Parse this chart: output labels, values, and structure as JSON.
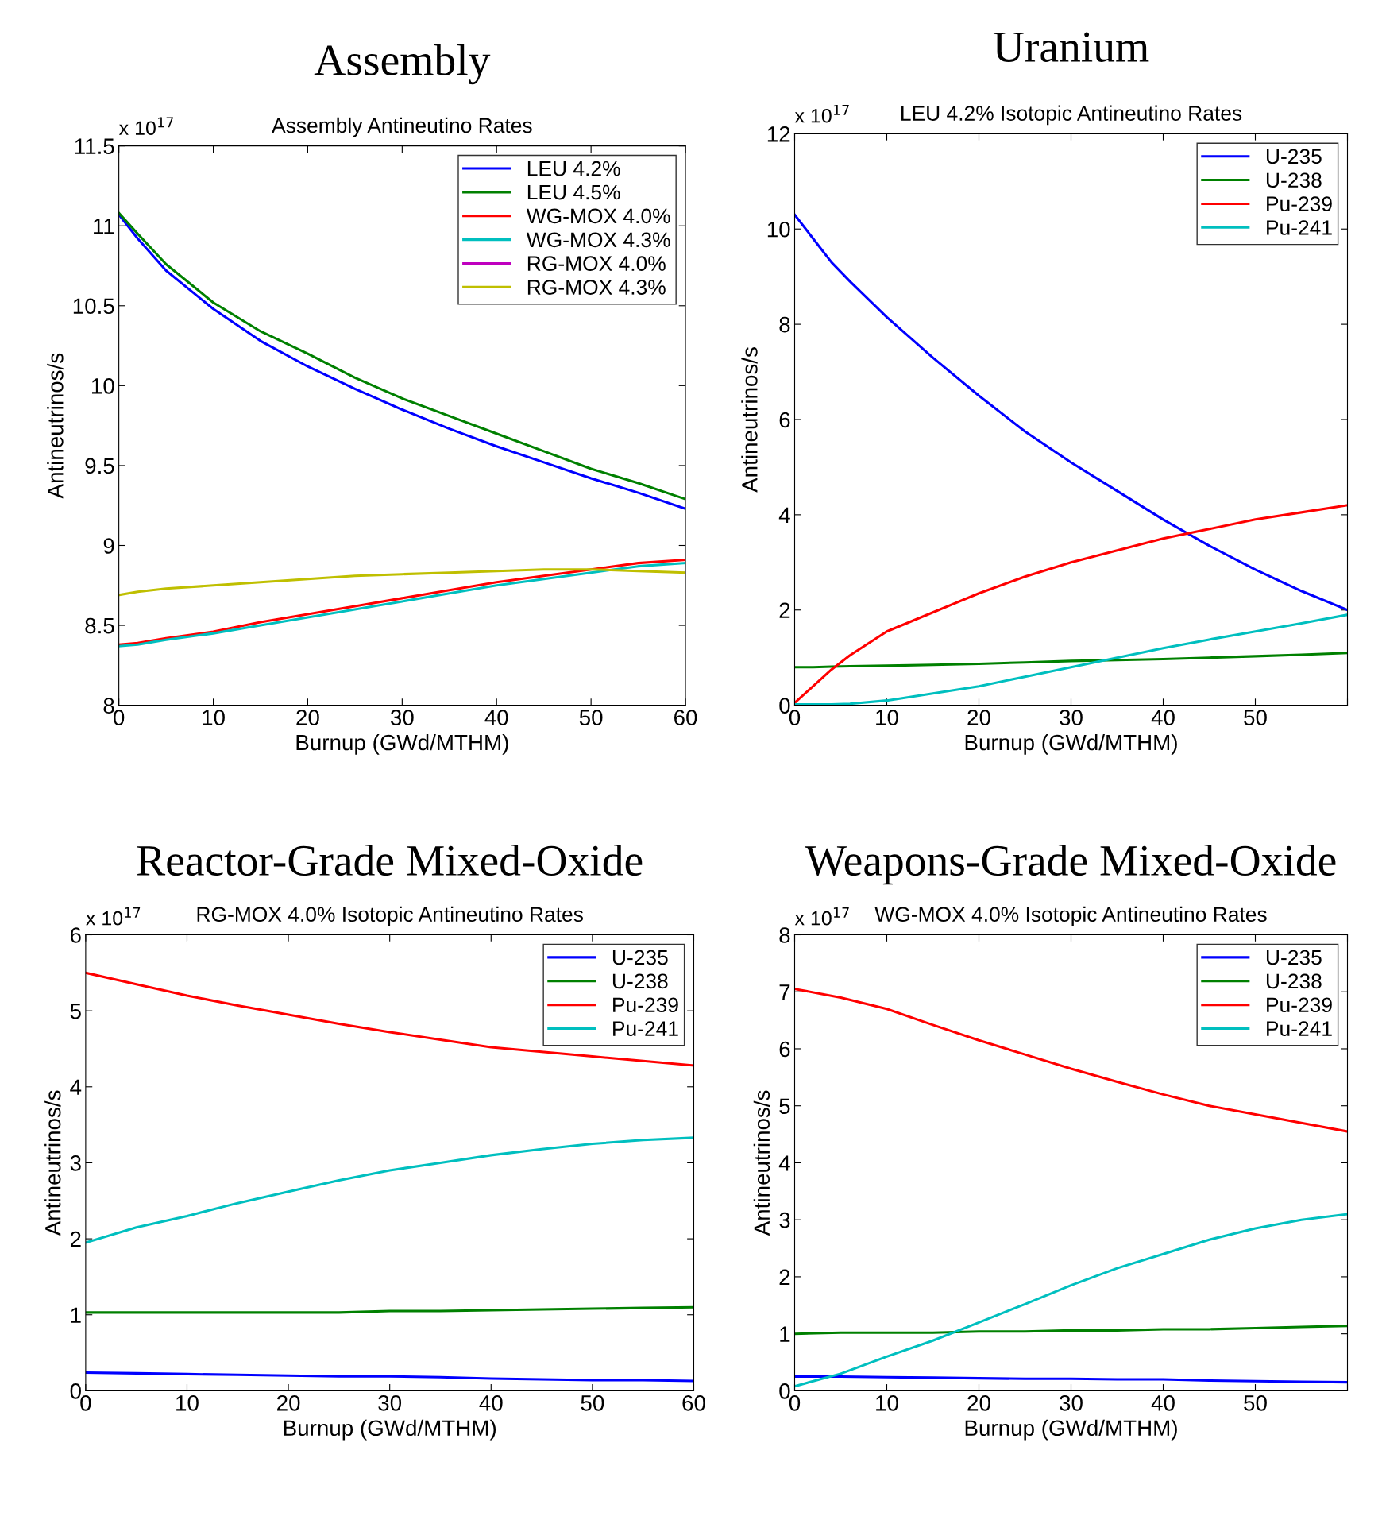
{
  "chart_data": [
    {
      "type": "line",
      "title": "Assembly",
      "subtitle": "Assembly Antineutino Rates",
      "xlabel": "Burnup (GWd/MTHM)",
      "ylabel": "Antineutrinos/s",
      "annotations": [
        "x 10$^{17}$"
      ],
      "x": [
        0,
        2,
        5,
        10,
        15,
        20,
        25,
        30,
        35,
        40,
        45,
        50,
        55,
        60
      ],
      "xlim": [
        0,
        60
      ],
      "xticks": [
        0,
        10,
        20,
        30,
        40,
        50,
        60
      ],
      "ylim": [
        8,
        11.5
      ],
      "yticks": [
        8,
        8.5,
        9,
        9.5,
        10,
        10.5,
        11,
        11.5
      ],
      "legend": "top right",
      "series": [
        {
          "name": "LEU 4.2%",
          "color": "#0000ff",
          "values": [
            11.07,
            10.92,
            10.72,
            10.48,
            10.28,
            10.12,
            9.98,
            9.85,
            9.73,
            9.62,
            9.52,
            9.42,
            9.33,
            9.23
          ]
        },
        {
          "name": "LEU 4.5%",
          "color": "#008000",
          "values": [
            11.08,
            10.95,
            10.76,
            10.52,
            10.34,
            10.2,
            10.05,
            9.92,
            9.81,
            9.7,
            9.59,
            9.48,
            9.39,
            9.29
          ]
        },
        {
          "name": "WG-MOX 4.0%",
          "color": "#ff0000",
          "values": [
            8.38,
            8.39,
            8.42,
            8.46,
            8.52,
            8.57,
            8.62,
            8.67,
            8.72,
            8.77,
            8.81,
            8.85,
            8.89,
            8.91
          ]
        },
        {
          "name": "WG-MOX 4.3%",
          "color": "#00bfbf",
          "values": [
            8.37,
            8.38,
            8.41,
            8.45,
            8.5,
            8.55,
            8.6,
            8.65,
            8.7,
            8.75,
            8.79,
            8.83,
            8.87,
            8.89
          ]
        },
        {
          "name": "RG-MOX 4.0%",
          "color": "#bf00bf",
          "values": [
            null,
            null,
            null,
            null,
            null,
            null,
            null,
            null,
            null,
            null,
            null,
            null,
            null,
            null
          ]
        },
        {
          "name": "RG-MOX 4.3%",
          "color": "#bfbf00",
          "values": [
            8.69,
            8.71,
            8.73,
            8.75,
            8.77,
            8.79,
            8.81,
            8.82,
            8.83,
            8.84,
            8.85,
            8.85,
            8.84,
            8.83
          ]
        }
      ]
    },
    {
      "type": "line",
      "title": "Uranium",
      "subtitle": "LEU 4.2% Isotopic Antineutino Rates",
      "xlabel": "Burnup (GWd/MTHM)",
      "ylabel": "Antineutrinos/s",
      "annotations": [
        "x 10$^{17}$"
      ],
      "x": [
        0,
        2,
        4,
        6,
        10,
        15,
        20,
        25,
        30,
        35,
        40,
        45,
        50,
        55,
        60
      ],
      "xlim": [
        0,
        60
      ],
      "xticks": [
        0,
        10,
        20,
        30,
        40,
        50,
        {
          "value": 60,
          "label": null
        }
      ],
      "ylim": [
        0,
        12
      ],
      "yticks": [
        0,
        2,
        4,
        6,
        8,
        10,
        12
      ],
      "legend": "top right",
      "series": [
        {
          "name": "U-235",
          "color": "#0000ff",
          "values": [
            10.3,
            9.8,
            9.3,
            8.9,
            8.15,
            7.3,
            6.5,
            5.75,
            5.1,
            4.5,
            3.9,
            3.35,
            2.85,
            2.4,
            2.0
          ]
        },
        {
          "name": "U-238",
          "color": "#008000",
          "values": [
            0.8,
            0.8,
            0.81,
            0.82,
            0.83,
            0.85,
            0.87,
            0.9,
            0.93,
            0.95,
            0.97,
            1.0,
            1.03,
            1.06,
            1.1
          ]
        },
        {
          "name": "Pu-239",
          "color": "#ff0000",
          "values": [
            0.05,
            0.4,
            0.75,
            1.05,
            1.55,
            1.95,
            2.35,
            2.7,
            3.0,
            3.25,
            3.5,
            3.7,
            3.9,
            4.05,
            4.2
          ]
        },
        {
          "name": "Pu-241",
          "color": "#00bfbf",
          "values": [
            0.02,
            0.02,
            0.02,
            0.03,
            0.1,
            0.25,
            0.4,
            0.6,
            0.8,
            1.0,
            1.2,
            1.38,
            1.55,
            1.72,
            1.9
          ]
        }
      ]
    },
    {
      "type": "line",
      "title": "Reactor-Grade Mixed-Oxide",
      "subtitle": "RG-MOX 4.0% Isotopic Antineutino Rates",
      "xlabel": "Burnup (GWd/MTHM)",
      "ylabel": "Antineutrinos/s",
      "annotations": [
        "x 10$^{17}$"
      ],
      "x": [
        0,
        5,
        10,
        15,
        20,
        25,
        30,
        35,
        40,
        45,
        50,
        55,
        60
      ],
      "xlim": [
        0,
        60
      ],
      "xticks": [
        0,
        10,
        20,
        30,
        40,
        50,
        60
      ],
      "ylim": [
        0,
        6
      ],
      "yticks": [
        0,
        1,
        2,
        3,
        4,
        5,
        6
      ],
      "legend": "top right",
      "series": [
        {
          "name": "U-235",
          "color": "#0000ff",
          "values": [
            0.24,
            0.23,
            0.22,
            0.21,
            0.2,
            0.19,
            0.19,
            0.18,
            0.16,
            0.15,
            0.14,
            0.14,
            0.13
          ]
        },
        {
          "name": "U-238",
          "color": "#008000",
          "values": [
            1.03,
            1.03,
            1.03,
            1.03,
            1.03,
            1.03,
            1.05,
            1.05,
            1.06,
            1.07,
            1.08,
            1.09,
            1.1
          ]
        },
        {
          "name": "Pu-239",
          "color": "#ff0000",
          "values": [
            5.5,
            5.35,
            5.2,
            5.07,
            4.95,
            4.83,
            4.72,
            4.62,
            4.52,
            4.46,
            4.4,
            4.34,
            4.28
          ]
        },
        {
          "name": "Pu-241",
          "color": "#00bfbf",
          "values": [
            1.95,
            2.15,
            2.3,
            2.47,
            2.62,
            2.77,
            2.9,
            3.0,
            3.1,
            3.18,
            3.25,
            3.3,
            3.33
          ]
        }
      ]
    },
    {
      "type": "line",
      "title": "Weapons-Grade Mixed-Oxide",
      "subtitle": "WG-MOX 4.0% Isotopic Antineutino Rates",
      "xlabel": "Burnup (GWd/MTHM)",
      "ylabel": "Antineutrinos/s",
      "annotations": [
        "x 10$^{17}$"
      ],
      "x": [
        0,
        5,
        10,
        15,
        20,
        25,
        30,
        35,
        40,
        45,
        50,
        55,
        60
      ],
      "xlim": [
        0,
        60
      ],
      "xticks": [
        0,
        10,
        20,
        30,
        40,
        50,
        {
          "value": 60,
          "label": null
        }
      ],
      "ylim": [
        0,
        8
      ],
      "yticks": [
        0,
        1,
        2,
        3,
        4,
        5,
        6,
        7,
        8
      ],
      "legend": "top right",
      "series": [
        {
          "name": "U-235",
          "color": "#0000ff",
          "values": [
            0.25,
            0.25,
            0.24,
            0.23,
            0.22,
            0.21,
            0.21,
            0.2,
            0.2,
            0.18,
            0.17,
            0.16,
            0.15
          ]
        },
        {
          "name": "U-238",
          "color": "#008000",
          "values": [
            1.0,
            1.02,
            1.02,
            1.02,
            1.04,
            1.04,
            1.06,
            1.06,
            1.08,
            1.08,
            1.1,
            1.12,
            1.14
          ]
        },
        {
          "name": "Pu-239",
          "color": "#ff0000",
          "values": [
            7.05,
            6.9,
            6.7,
            6.42,
            6.15,
            5.9,
            5.65,
            5.42,
            5.2,
            5.0,
            4.85,
            4.7,
            4.55
          ]
        },
        {
          "name": "Pu-241",
          "color": "#00bfbf",
          "values": [
            0.08,
            0.3,
            0.6,
            0.88,
            1.2,
            1.52,
            1.85,
            2.15,
            2.4,
            2.65,
            2.85,
            3.0,
            3.1
          ]
        }
      ]
    }
  ]
}
